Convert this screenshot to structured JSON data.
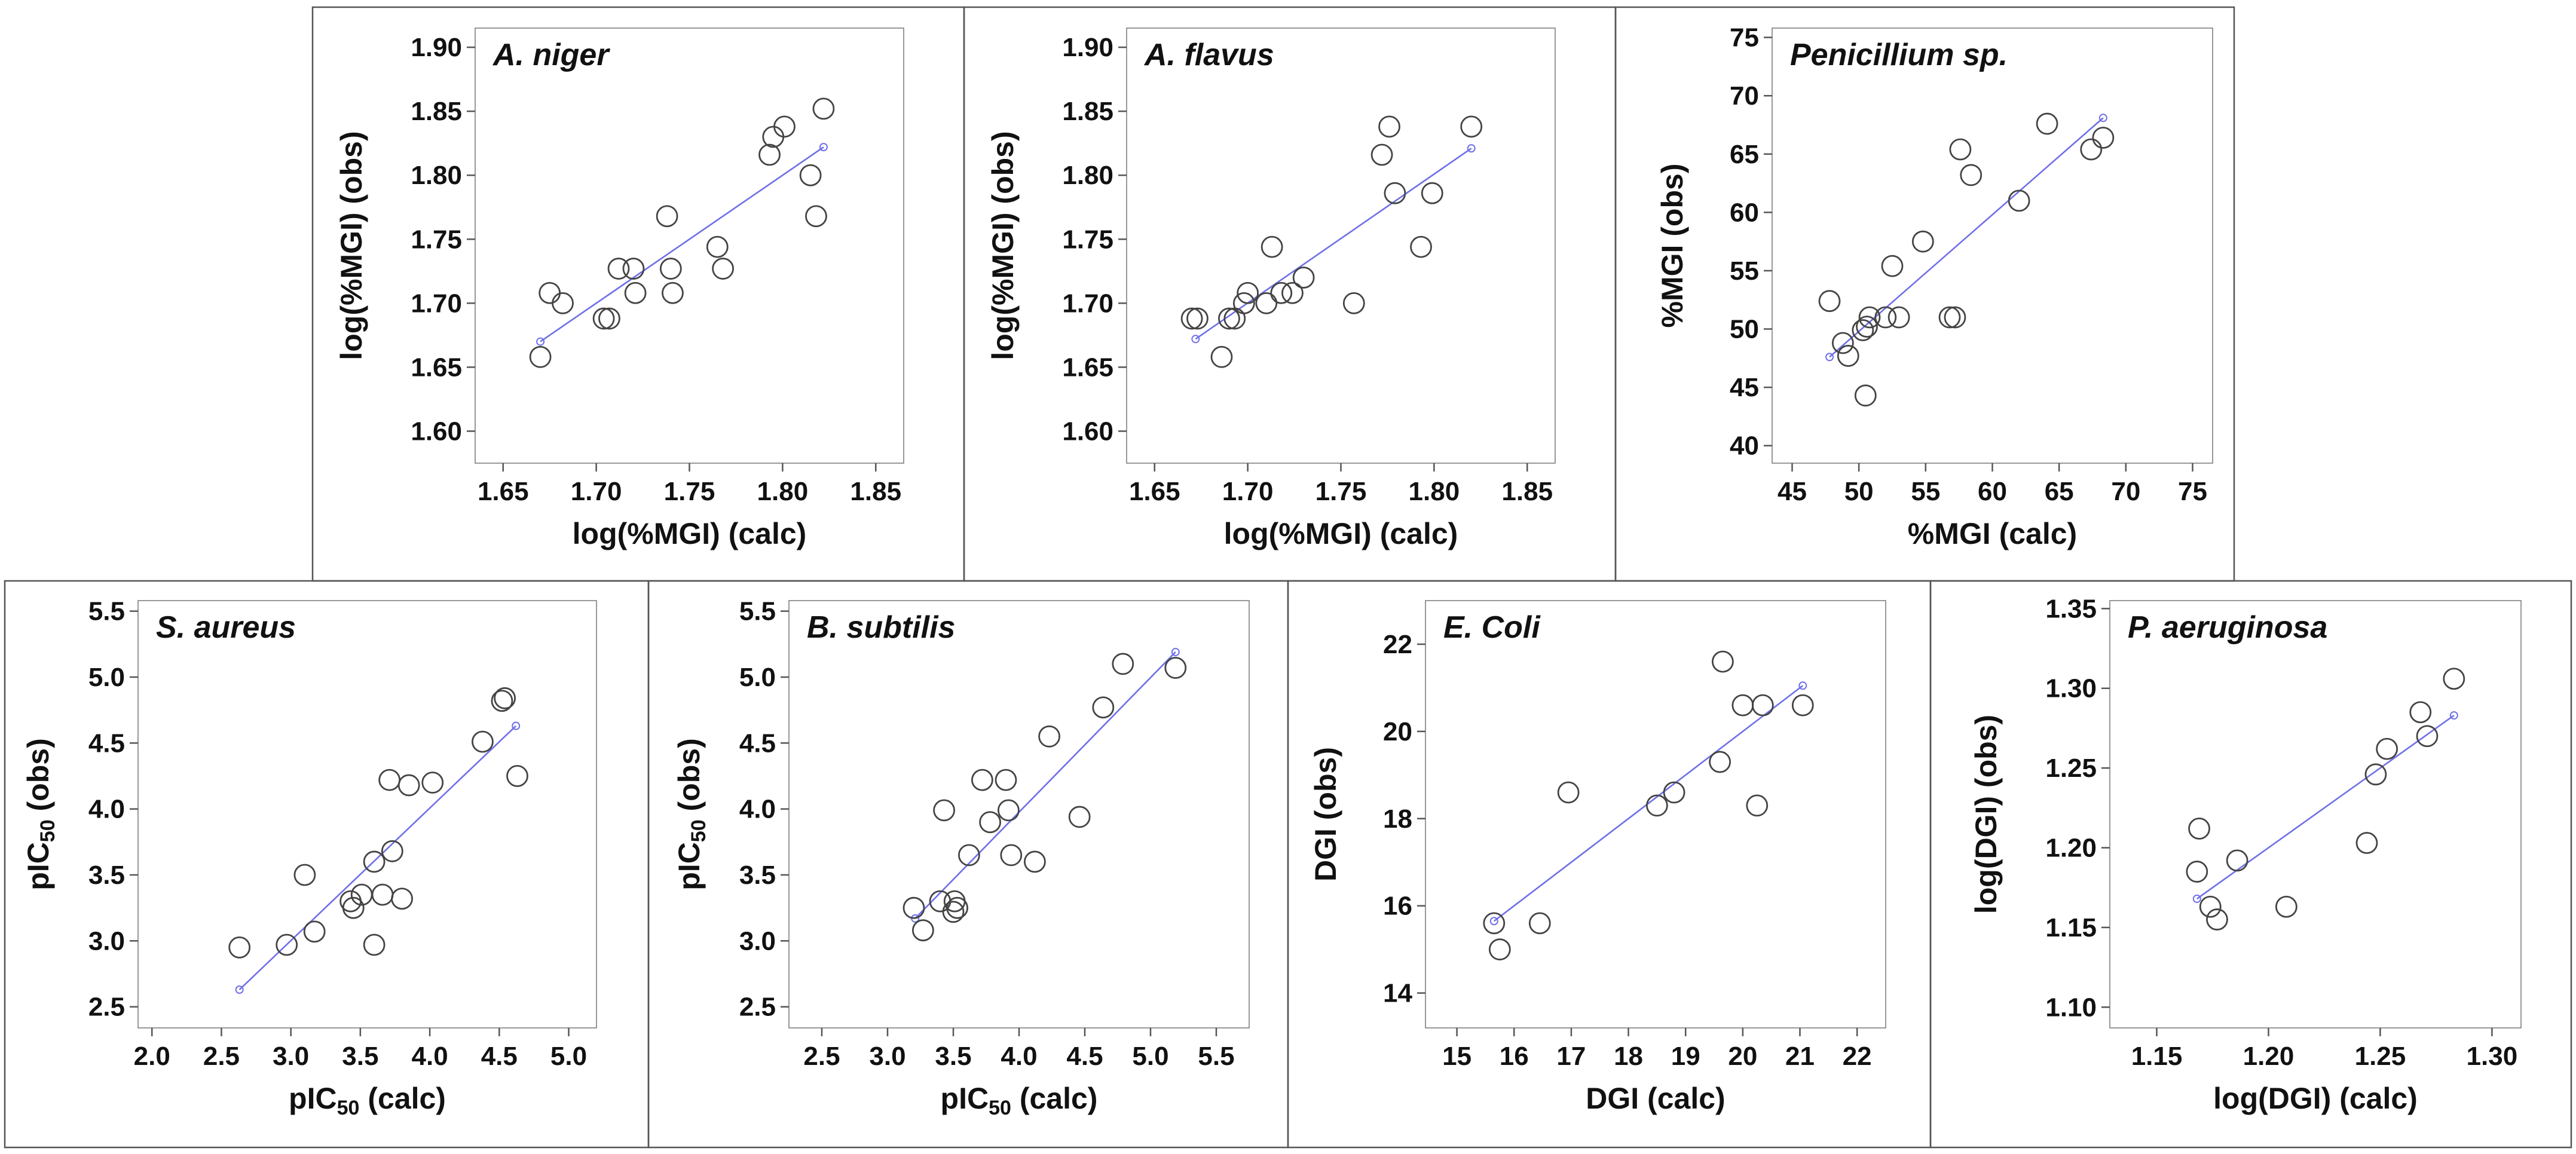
{
  "colors": {
    "fit_line": "#6f6fe8",
    "points": "#444444"
  },
  "chart_data": [
    {
      "type": "scatter",
      "title": "A. niger",
      "xlabel": "log(%MGI) (calc)",
      "ylabel": "log(%MGI) (obs)",
      "xlim": [
        1.635,
        1.865
      ],
      "ylim": [
        1.575,
        1.915
      ],
      "xticks": [
        "1.65",
        "1.70",
        "1.75",
        "1.80",
        "1.85"
      ],
      "yticks": [
        "1.60",
        "1.65",
        "1.70",
        "1.75",
        "1.80",
        "1.85",
        "1.90"
      ],
      "points": [
        [
          1.67,
          1.658
        ],
        [
          1.675,
          1.708
        ],
        [
          1.682,
          1.7
        ],
        [
          1.704,
          1.688
        ],
        [
          1.707,
          1.688
        ],
        [
          1.712,
          1.727
        ],
        [
          1.72,
          1.727
        ],
        [
          1.721,
          1.708
        ],
        [
          1.738,
          1.768
        ],
        [
          1.74,
          1.727
        ],
        [
          1.741,
          1.708
        ],
        [
          1.765,
          1.744
        ],
        [
          1.768,
          1.727
        ],
        [
          1.793,
          1.816
        ],
        [
          1.795,
          1.83
        ],
        [
          1.801,
          1.838
        ],
        [
          1.815,
          1.8
        ],
        [
          1.818,
          1.768
        ],
        [
          1.822,
          1.852
        ]
      ],
      "fit": [
        [
          1.67,
          1.67
        ],
        [
          1.822,
          1.822
        ]
      ]
    },
    {
      "type": "scatter",
      "title": "A. flavus",
      "xlabel": "log(%MGI) (calc)",
      "ylabel": "log(%MGI) (obs)",
      "xlim": [
        1.635,
        1.865
      ],
      "ylim": [
        1.575,
        1.915
      ],
      "xticks": [
        "1.65",
        "1.70",
        "1.75",
        "1.80",
        "1.85"
      ],
      "yticks": [
        "1.60",
        "1.65",
        "1.70",
        "1.75",
        "1.80",
        "1.85",
        "1.90"
      ],
      "points": [
        [
          1.67,
          1.688
        ],
        [
          1.673,
          1.688
        ],
        [
          1.686,
          1.658
        ],
        [
          1.69,
          1.688
        ],
        [
          1.693,
          1.688
        ],
        [
          1.698,
          1.7
        ],
        [
          1.7,
          1.708
        ],
        [
          1.71,
          1.7
        ],
        [
          1.713,
          1.744
        ],
        [
          1.718,
          1.708
        ],
        [
          1.724,
          1.708
        ],
        [
          1.73,
          1.72
        ],
        [
          1.757,
          1.7
        ],
        [
          1.772,
          1.816
        ],
        [
          1.776,
          1.838
        ],
        [
          1.779,
          1.786
        ],
        [
          1.793,
          1.744
        ],
        [
          1.799,
          1.786
        ],
        [
          1.82,
          1.838
        ]
      ],
      "fit": [
        [
          1.672,
          1.672
        ],
        [
          1.82,
          1.821
        ]
      ]
    },
    {
      "type": "scatter",
      "title": "Penicillium  sp.",
      "xlabel": "%MGI (calc)",
      "ylabel": "%MGI (obs)",
      "xlim": [
        43.5,
        76.5
      ],
      "ylim": [
        38.5,
        75.8
      ],
      "xticks": [
        "45",
        "50",
        "55",
        "60",
        "65",
        "70",
        "75"
      ],
      "yticks": [
        "40",
        "45",
        "50",
        "55",
        "60",
        "65",
        "70",
        "75"
      ],
      "points": [
        [
          47.8,
          52.4
        ],
        [
          48.8,
          48.8
        ],
        [
          49.2,
          47.7
        ],
        [
          50.3,
          49.9
        ],
        [
          50.6,
          50.2
        ],
        [
          50.8,
          51.0
        ],
        [
          50.5,
          44.3
        ],
        [
          52.0,
          51.0
        ],
        [
          52.5,
          55.4
        ],
        [
          53.0,
          51.0
        ],
        [
          54.8,
          57.5
        ],
        [
          56.8,
          51.0
        ],
        [
          57.2,
          51.0
        ],
        [
          57.6,
          65.4
        ],
        [
          58.4,
          63.2
        ],
        [
          62.0,
          61.0
        ],
        [
          64.1,
          67.6
        ],
        [
          67.4,
          65.4
        ],
        [
          68.3,
          66.4
        ]
      ],
      "fit": [
        [
          47.8,
          47.6
        ],
        [
          68.3,
          68.1
        ]
      ]
    },
    {
      "type": "scatter",
      "title": "S. aureus",
      "xlabel": "pIC50 (calc)",
      "ylabel": "pIC50 (obs)",
      "xlim": [
        1.9,
        5.2
      ],
      "ylim": [
        2.34,
        5.58
      ],
      "xticks": [
        "2.0",
        "2.5",
        "3.0",
        "3.5",
        "4.0",
        "4.5",
        "5.0"
      ],
      "yticks": [
        "2.5",
        "3.0",
        "3.5",
        "4.0",
        "4.5",
        "5.0",
        "5.5"
      ],
      "points": [
        [
          2.63,
          2.95
        ],
        [
          2.97,
          2.97
        ],
        [
          3.1,
          3.5
        ],
        [
          3.17,
          3.07
        ],
        [
          3.43,
          3.3
        ],
        [
          3.45,
          3.25
        ],
        [
          3.51,
          3.35
        ],
        [
          3.6,
          2.97
        ],
        [
          3.6,
          3.6
        ],
        [
          3.66,
          3.35
        ],
        [
          3.71,
          4.22
        ],
        [
          3.73,
          3.68
        ],
        [
          3.8,
          3.32
        ],
        [
          3.85,
          4.18
        ],
        [
          4.02,
          4.2
        ],
        [
          4.38,
          4.51
        ],
        [
          4.52,
          4.82
        ],
        [
          4.54,
          4.84
        ],
        [
          4.63,
          4.25
        ]
      ],
      "fit": [
        [
          2.63,
          2.63
        ],
        [
          4.62,
          4.63
        ]
      ]
    },
    {
      "type": "scatter",
      "title": "B. subtilis",
      "xlabel": "pIC50 (calc)",
      "ylabel": "pIC50 (obs)",
      "xlim": [
        2.25,
        5.75
      ],
      "ylim": [
        2.34,
        5.58
      ],
      "xticks": [
        "2.5",
        "3.0",
        "3.5",
        "4.0",
        "4.5",
        "5.0",
        "5.5"
      ],
      "yticks": [
        "2.5",
        "3.0",
        "3.5",
        "4.0",
        "4.5",
        "5.0",
        "5.5"
      ],
      "points": [
        [
          3.2,
          3.25
        ],
        [
          3.27,
          3.08
        ],
        [
          3.4,
          3.3
        ],
        [
          3.43,
          3.99
        ],
        [
          3.5,
          3.22
        ],
        [
          3.51,
          3.3
        ],
        [
          3.53,
          3.25
        ],
        [
          3.62,
          3.65
        ],
        [
          3.72,
          4.22
        ],
        [
          3.78,
          3.9
        ],
        [
          3.9,
          4.22
        ],
        [
          3.92,
          3.99
        ],
        [
          3.94,
          3.65
        ],
        [
          4.12,
          3.6
        ],
        [
          4.23,
          4.55
        ],
        [
          4.46,
          3.94
        ],
        [
          4.64,
          4.77
        ],
        [
          4.79,
          5.1
        ],
        [
          5.19,
          5.07
        ]
      ],
      "fit": [
        [
          3.21,
          3.17
        ],
        [
          5.19,
          5.19
        ]
      ]
    },
    {
      "type": "scatter",
      "title": "E. Coli",
      "xlabel": "DGI (calc)",
      "ylabel": "DGI (obs)",
      "xlim": [
        14.45,
        22.5
      ],
      "ylim": [
        13.2,
        23.0
      ],
      "xticks": [
        "15",
        "16",
        "17",
        "18",
        "19",
        "20",
        "21",
        "22"
      ],
      "yticks": [
        "14",
        "16",
        "18",
        "20",
        "22"
      ],
      "points": [
        [
          15.65,
          15.6
        ],
        [
          15.75,
          15.0
        ],
        [
          16.45,
          15.6
        ],
        [
          16.95,
          18.6
        ],
        [
          18.5,
          18.3
        ],
        [
          18.8,
          18.6
        ],
        [
          19.6,
          19.3
        ],
        [
          19.65,
          21.6
        ],
        [
          20.0,
          20.6
        ],
        [
          20.25,
          18.3
        ],
        [
          20.35,
          20.6
        ],
        [
          21.05,
          20.6
        ]
      ],
      "fit": [
        [
          15.65,
          15.65
        ],
        [
          21.05,
          21.05
        ]
      ]
    },
    {
      "type": "scatter",
      "title": "P. aeruginosa",
      "xlabel": "log(DGI) (calc)",
      "ylabel": "log(DGI) (obs)",
      "xlim": [
        1.129,
        1.313
      ],
      "ylim": [
        1.087,
        1.355
      ],
      "xticks": [
        "1.15",
        "1.20",
        "1.25",
        "1.30"
      ],
      "yticks": [
        "1.10",
        "1.15",
        "1.20",
        "1.25",
        "1.30",
        "1.35"
      ],
      "points": [
        [
          1.168,
          1.185
        ],
        [
          1.169,
          1.212
        ],
        [
          1.174,
          1.163
        ],
        [
          1.177,
          1.155
        ],
        [
          1.186,
          1.192
        ],
        [
          1.208,
          1.163
        ],
        [
          1.244,
          1.203
        ],
        [
          1.248,
          1.246
        ],
        [
          1.253,
          1.262
        ],
        [
          1.268,
          1.285
        ],
        [
          1.271,
          1.27
        ],
        [
          1.283,
          1.306
        ]
      ],
      "fit": [
        [
          1.168,
          1.168
        ],
        [
          1.283,
          1.283
        ]
      ]
    }
  ]
}
